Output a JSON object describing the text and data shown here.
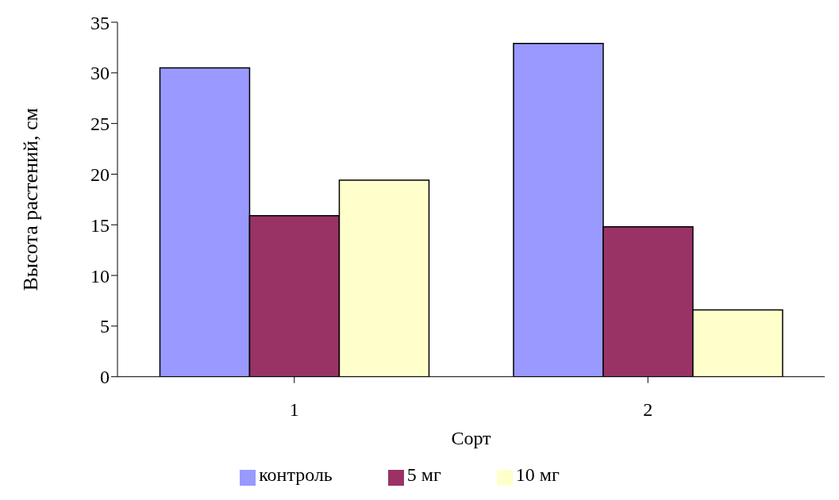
{
  "chart_data": {
    "type": "bar",
    "xlabel": "Сорт",
    "ylabel": "Высота растений, см",
    "categories": [
      "1",
      "2"
    ],
    "series": [
      {
        "name": "контроль",
        "color": "#9999ff",
        "values": [
          30.5,
          32.9
        ]
      },
      {
        "name": "5 мг",
        "color": "#993366",
        "values": [
          15.9,
          14.8
        ]
      },
      {
        "name": "10 мг",
        "color": "#ffffcc",
        "values": [
          19.4,
          6.6
        ]
      }
    ],
    "ylim": [
      0,
      35
    ],
    "yticks": [
      0,
      5,
      10,
      15,
      20,
      25,
      30,
      35
    ],
    "grid": false,
    "legend": "bottom"
  }
}
